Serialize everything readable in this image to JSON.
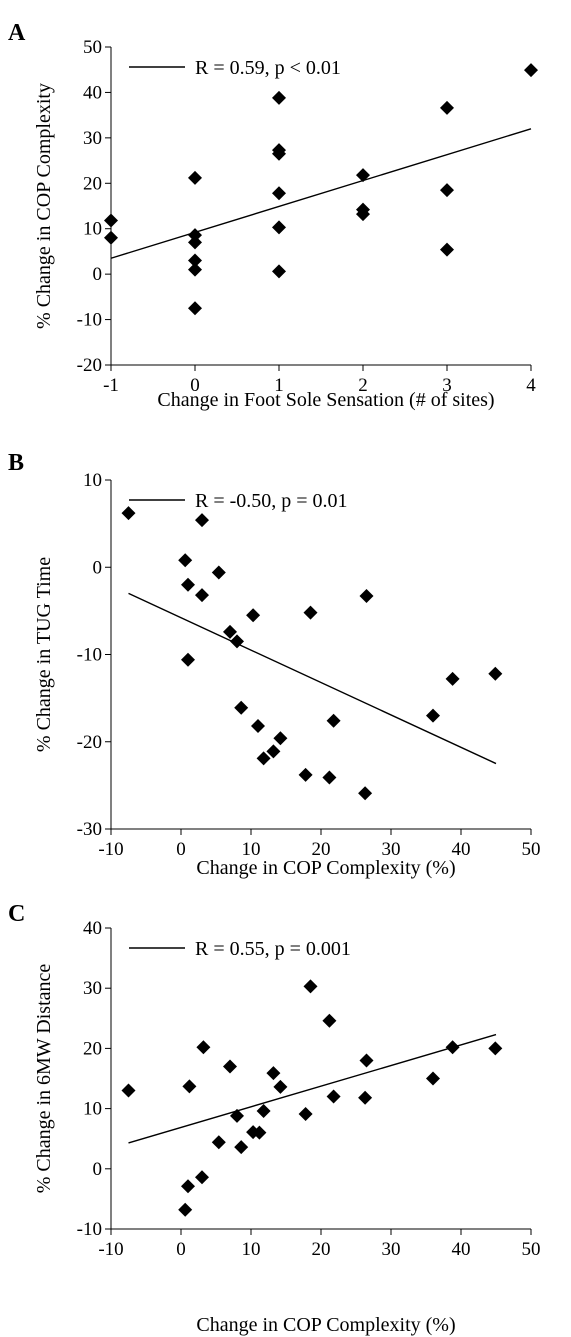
{
  "chart_data": [
    {
      "panel": "A",
      "type": "scatter",
      "title": "",
      "xlabel": "Change in Foot Sole Sensation (# of sites)",
      "ylabel": "% Change in COP Complexity",
      "xlim": [
        -1,
        4
      ],
      "ylim": [
        -20,
        50
      ],
      "xticks": [
        -1,
        0,
        1,
        2,
        3,
        4
      ],
      "yticks": [
        -20,
        -10,
        0,
        10,
        20,
        30,
        40,
        50
      ],
      "legend": "R = 0.59, p < 0.01",
      "legend_position": "top-left",
      "fit_line": {
        "x": [
          -1,
          4
        ],
        "y": [
          3.5,
          32
        ]
      },
      "points": [
        {
          "x": -1,
          "y": 11.8
        },
        {
          "x": -1,
          "y": 8.0
        },
        {
          "x": 0,
          "y": 21.2
        },
        {
          "x": 0,
          "y": 8.6
        },
        {
          "x": 0,
          "y": 7.0
        },
        {
          "x": 0,
          "y": 3.0
        },
        {
          "x": 0,
          "y": 1.0
        },
        {
          "x": 0,
          "y": -7.5
        },
        {
          "x": 1,
          "y": 38.8
        },
        {
          "x": 1,
          "y": 27.3
        },
        {
          "x": 1,
          "y": 26.5
        },
        {
          "x": 1,
          "y": 17.8
        },
        {
          "x": 1,
          "y": 10.3
        },
        {
          "x": 1,
          "y": 0.6
        },
        {
          "x": 2,
          "y": 21.8
        },
        {
          "x": 2,
          "y": 14.2
        },
        {
          "x": 2,
          "y": 13.2
        },
        {
          "x": 3,
          "y": 36.6
        },
        {
          "x": 3,
          "y": 18.5
        },
        {
          "x": 3,
          "y": 5.4
        },
        {
          "x": 4,
          "y": 44.9
        }
      ]
    },
    {
      "panel": "B",
      "type": "scatter",
      "title": "",
      "xlabel": "Change in COP Complexity (%)",
      "ylabel": "% Change in TUG Time",
      "xlim": [
        -10,
        50
      ],
      "ylim": [
        -30,
        10
      ],
      "xticks": [
        -10,
        0,
        10,
        20,
        30,
        40,
        50
      ],
      "yticks": [
        -30,
        -20,
        -10,
        0,
        10
      ],
      "legend": "R = -0.50, p = 0.01",
      "legend_position": "top-left",
      "fit_line": {
        "x": [
          -7.5,
          45
        ],
        "y": [
          -3.0,
          -22.5
        ]
      },
      "points": [
        {
          "x": -7.5,
          "y": 6.2
        },
        {
          "x": 0.6,
          "y": 0.8
        },
        {
          "x": 1.0,
          "y": -2.0
        },
        {
          "x": 3.0,
          "y": 5.4
        },
        {
          "x": 3.0,
          "y": -3.2
        },
        {
          "x": 1.0,
          "y": -10.6
        },
        {
          "x": 5.4,
          "y": -0.6
        },
        {
          "x": 7.0,
          "y": -7.4
        },
        {
          "x": 8.0,
          "y": -8.5
        },
        {
          "x": 10.3,
          "y": -5.5
        },
        {
          "x": 8.6,
          "y": -16.1
        },
        {
          "x": 11.0,
          "y": -18.2
        },
        {
          "x": 11.8,
          "y": -21.9
        },
        {
          "x": 13.2,
          "y": -21.1
        },
        {
          "x": 14.2,
          "y": -19.6
        },
        {
          "x": 17.8,
          "y": -23.8
        },
        {
          "x": 18.5,
          "y": -5.2
        },
        {
          "x": 21.2,
          "y": -24.1
        },
        {
          "x": 21.8,
          "y": -17.6
        },
        {
          "x": 26.5,
          "y": -3.3
        },
        {
          "x": 26.3,
          "y": -25.9
        },
        {
          "x": 36.0,
          "y": -17.0
        },
        {
          "x": 38.8,
          "y": -12.8
        },
        {
          "x": 44.9,
          "y": -12.2
        }
      ]
    },
    {
      "panel": "C",
      "type": "scatter",
      "title": "",
      "xlabel": "Change in COP Complexity (%)",
      "ylabel": "% Change in 6MW Distance",
      "xlim": [
        -10,
        50
      ],
      "ylim": [
        -10,
        40
      ],
      "xticks": [
        -10,
        0,
        10,
        20,
        30,
        40,
        50
      ],
      "yticks": [
        -10,
        0,
        10,
        20,
        30,
        40
      ],
      "legend": "R = 0.55, p = 0.001",
      "legend_position": "top-left",
      "fit_line": {
        "x": [
          -7.5,
          45
        ],
        "y": [
          4.3,
          22.3
        ]
      },
      "points": [
        {
          "x": -7.5,
          "y": 13.0
        },
        {
          "x": 0.6,
          "y": -6.8
        },
        {
          "x": 1.0,
          "y": -2.9
        },
        {
          "x": 1.2,
          "y": 13.7
        },
        {
          "x": 3.0,
          "y": -1.4
        },
        {
          "x": 3.2,
          "y": 20.2
        },
        {
          "x": 5.4,
          "y": 4.4
        },
        {
          "x": 7.0,
          "y": 17.0
        },
        {
          "x": 8.0,
          "y": 8.8
        },
        {
          "x": 8.6,
          "y": 3.6
        },
        {
          "x": 10.3,
          "y": 6.1
        },
        {
          "x": 11.2,
          "y": 6.0
        },
        {
          "x": 11.8,
          "y": 9.6
        },
        {
          "x": 13.2,
          "y": 15.9
        },
        {
          "x": 14.2,
          "y": 13.6
        },
        {
          "x": 17.8,
          "y": 9.1
        },
        {
          "x": 18.5,
          "y": 30.3
        },
        {
          "x": 21.2,
          "y": 24.6
        },
        {
          "x": 21.8,
          "y": 12.0
        },
        {
          "x": 26.3,
          "y": 11.8
        },
        {
          "x": 26.5,
          "y": 18.0
        },
        {
          "x": 36.0,
          "y": 15.0
        },
        {
          "x": 38.8,
          "y": 20.2
        },
        {
          "x": 44.9,
          "y": 20.0
        }
      ]
    }
  ]
}
